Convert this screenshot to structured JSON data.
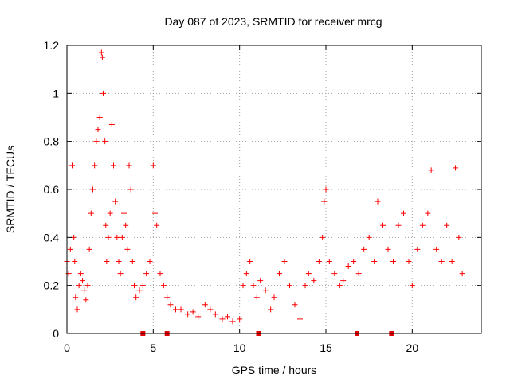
{
  "chart_data": {
    "type": "scatter",
    "title": "Day 087 of 2023, SRMTID for receiver mrcg",
    "xlabel": "GPS time / hours",
    "ylabel": "SRMTID / TECUs",
    "xlim": [
      0,
      24
    ],
    "ylim": [
      0,
      1.2
    ],
    "xticks": [
      0,
      5,
      10,
      15,
      20
    ],
    "xtick_labels": [
      "0",
      "5",
      "10",
      "15",
      "20"
    ],
    "yticks": [
      0,
      0.2,
      0.4,
      0.6,
      0.8,
      1.0,
      1.2
    ],
    "ytick_labels": [
      "0",
      "0.2",
      "0.4",
      "0.6",
      "0.8",
      "1",
      "1.2"
    ],
    "grid": true,
    "marker": "+",
    "color": "#ff0000",
    "series": [
      {
        "name": "SRMTID",
        "x": [
          0.0,
          0.1,
          0.2,
          0.3,
          0.4,
          0.45,
          0.5,
          0.6,
          0.7,
          0.8,
          0.9,
          1.0,
          1.1,
          1.2,
          1.3,
          1.4,
          1.5,
          1.6,
          1.7,
          1.8,
          1.9,
          2.0,
          2.05,
          2.1,
          2.2,
          2.25,
          2.3,
          2.4,
          2.5,
          2.6,
          2.7,
          2.8,
          2.9,
          3.0,
          3.1,
          3.2,
          3.3,
          3.4,
          3.5,
          3.6,
          3.7,
          3.8,
          3.9,
          4.0,
          4.2,
          4.4,
          4.6,
          4.8,
          5.0,
          5.1,
          5.2,
          5.4,
          5.6,
          5.8,
          6.0,
          6.3,
          6.6,
          7.0,
          7.3,
          7.6,
          8.0,
          8.3,
          8.6,
          9.0,
          9.3,
          9.6,
          10.0,
          10.2,
          10.4,
          10.6,
          10.8,
          11.0,
          11.2,
          11.5,
          11.8,
          12.0,
          12.3,
          12.6,
          12.9,
          13.2,
          13.5,
          13.8,
          14.0,
          14.3,
          14.6,
          14.8,
          14.9,
          15.0,
          15.2,
          15.5,
          15.8,
          16.0,
          16.3,
          16.6,
          16.9,
          17.2,
          17.5,
          17.8,
          18.0,
          18.3,
          18.6,
          18.9,
          19.2,
          19.5,
          19.8,
          20.0,
          20.3,
          20.6,
          20.9,
          21.1,
          21.4,
          21.7,
          22.0,
          22.3,
          22.5,
          22.7,
          22.9
        ],
        "y": [
          0.3,
          0.25,
          0.35,
          0.7,
          0.4,
          0.3,
          0.15,
          0.1,
          0.2,
          0.25,
          0.22,
          0.18,
          0.14,
          0.2,
          0.35,
          0.5,
          0.6,
          0.7,
          0.8,
          0.85,
          0.9,
          1.17,
          1.15,
          1.0,
          0.8,
          0.45,
          0.3,
          0.4,
          0.5,
          0.87,
          0.7,
          0.55,
          0.4,
          0.3,
          0.25,
          0.4,
          0.5,
          0.45,
          0.35,
          0.7,
          0.6,
          0.3,
          0.2,
          0.15,
          0.18,
          0.2,
          0.25,
          0.3,
          0.7,
          0.5,
          0.45,
          0.25,
          0.2,
          0.15,
          0.12,
          0.1,
          0.1,
          0.08,
          0.09,
          0.07,
          0.12,
          0.1,
          0.08,
          0.06,
          0.07,
          0.05,
          0.06,
          0.2,
          0.25,
          0.3,
          0.2,
          0.15,
          0.22,
          0.18,
          0.1,
          0.15,
          0.25,
          0.3,
          0.2,
          0.12,
          0.06,
          0.2,
          0.25,
          0.22,
          0.3,
          0.4,
          0.55,
          0.6,
          0.3,
          0.25,
          0.2,
          0.22,
          0.28,
          0.3,
          0.25,
          0.35,
          0.4,
          0.3,
          0.55,
          0.45,
          0.35,
          0.3,
          0.45,
          0.5,
          0.3,
          0.2,
          0.35,
          0.45,
          0.5,
          0.68,
          0.35,
          0.3,
          0.45,
          0.3,
          0.69,
          0.4,
          0.25
        ]
      }
    ],
    "gap_markers_x": [
      4.4,
      5.8,
      11.1,
      16.8,
      18.8
    ]
  }
}
